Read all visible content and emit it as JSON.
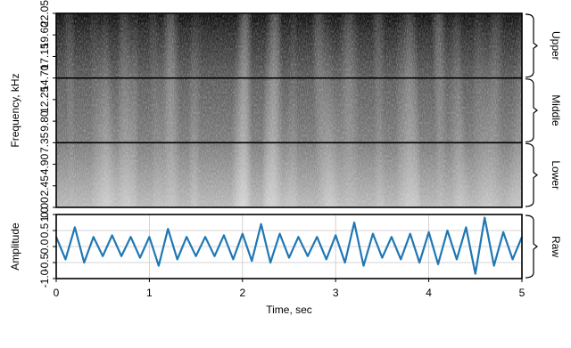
{
  "chart_data": [
    {
      "type": "spectrogram",
      "ylabel": "Frequency, kHz",
      "ylim": [
        0,
        22.05
      ],
      "yticks": [
        {
          "value": 0,
          "label": "0.00"
        },
        2.45,
        {
          "value": 4.9,
          "label": "4.90"
        },
        7.35,
        {
          "value": 9.8,
          "label": "9.80"
        },
        12.25,
        {
          "value": 14.7,
          "label": "14.70"
        },
        17.15,
        {
          "value": 19.6,
          "label": "19.60"
        },
        22.05
      ],
      "xlim": [
        0,
        5
      ],
      "bands": [
        {
          "label": "Upper",
          "range": [
            14.7,
            22.05
          ]
        },
        {
          "label": "Middle",
          "range": [
            7.35,
            14.7
          ]
        },
        {
          "label": "Lower",
          "range": [
            0,
            7.35
          ]
        }
      ]
    },
    {
      "type": "line",
      "ylabel": "Amplitude",
      "xlabel": "Time, sec",
      "color": "#1f77b4",
      "grid": true,
      "xlim": [
        0,
        5
      ],
      "xticks": [
        0,
        1,
        2,
        3,
        4,
        5
      ],
      "ylim": [
        -1,
        1
      ],
      "yticks": [
        {
          "value": -1,
          "label": "-1.0"
        },
        {
          "value": -0.5,
          "label": "-0.5"
        },
        {
          "value": 0,
          "label": "0.0"
        },
        {
          "value": 0.5,
          "label": "0.5"
        },
        {
          "value": 1,
          "label": "1.0"
        }
      ],
      "bands": [
        {
          "label": "Raw",
          "range": [
            -1,
            1
          ]
        }
      ],
      "x": [
        0,
        0.1,
        0.2,
        0.3,
        0.4,
        0.5,
        0.6,
        0.7,
        0.8,
        0.9,
        1,
        1.1,
        1.2,
        1.3,
        1.4,
        1.5,
        1.6,
        1.7,
        1.8,
        1.9,
        2,
        2.1,
        2.2,
        2.3,
        2.4,
        2.5,
        2.6,
        2.7,
        2.8,
        2.9,
        3,
        3.1,
        3.2,
        3.3,
        3.4,
        3.5,
        3.6,
        3.7,
        3.8,
        3.9,
        4,
        4.1,
        4.2,
        4.3,
        4.4,
        4.5,
        4.6,
        4.7,
        4.8,
        4.9,
        5
      ],
      "values": [
        0.3,
        -0.4,
        0.6,
        -0.5,
        0.3,
        -0.3,
        0.35,
        -0.3,
        0.3,
        -0.35,
        0.3,
        -0.6,
        0.55,
        -0.4,
        0.3,
        -0.3,
        0.3,
        -0.3,
        0.35,
        -0.4,
        0.4,
        -0.45,
        0.7,
        -0.5,
        0.4,
        -0.35,
        0.3,
        -0.3,
        0.3,
        -0.4,
        0.35,
        -0.5,
        0.75,
        -0.6,
        0.4,
        -0.35,
        0.3,
        -0.4,
        0.4,
        -0.5,
        0.45,
        -0.55,
        0.5,
        -0.4,
        0.6,
        -0.85,
        0.9,
        -0.6,
        0.45,
        -0.4,
        0.3
      ]
    }
  ]
}
